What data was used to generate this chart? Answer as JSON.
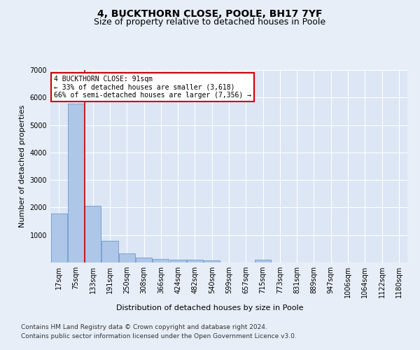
{
  "title": "4, BUCKTHORN CLOSE, POOLE, BH17 7YF",
  "subtitle": "Size of property relative to detached houses in Poole",
  "xlabel": "Distribution of detached houses by size in Poole",
  "ylabel": "Number of detached properties",
  "categories": [
    "17sqm",
    "75sqm",
    "133sqm",
    "191sqm",
    "250sqm",
    "308sqm",
    "366sqm",
    "424sqm",
    "482sqm",
    "540sqm",
    "599sqm",
    "657sqm",
    "715sqm",
    "773sqm",
    "831sqm",
    "889sqm",
    "947sqm",
    "1006sqm",
    "1064sqm",
    "1122sqm",
    "1180sqm"
  ],
  "values": [
    1780,
    5780,
    2060,
    800,
    340,
    190,
    115,
    105,
    95,
    80,
    0,
    0,
    90,
    0,
    0,
    0,
    0,
    0,
    0,
    0,
    0
  ],
  "bar_color": "#aec6e8",
  "bar_edge_color": "#5a8fc2",
  "property_line_color": "#cc0000",
  "annotation_text": "4 BUCKTHORN CLOSE: 91sqm\n← 33% of detached houses are smaller (3,618)\n66% of semi-detached houses are larger (7,356) →",
  "annotation_box_color": "#cc0000",
  "ylim": [
    0,
    7000
  ],
  "yticks": [
    0,
    1000,
    2000,
    3000,
    4000,
    5000,
    6000,
    7000
  ],
  "footer1": "Contains HM Land Registry data © Crown copyright and database right 2024.",
  "footer2": "Contains public sector information licensed under the Open Government Licence v3.0.",
  "background_color": "#e8eef8",
  "plot_bg_color": "#dce6f5",
  "grid_color": "#ffffff",
  "title_fontsize": 10,
  "subtitle_fontsize": 9,
  "axis_label_fontsize": 8,
  "tick_fontsize": 7,
  "footer_fontsize": 6.5
}
